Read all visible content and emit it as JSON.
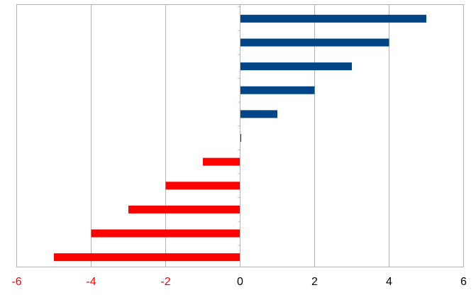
{
  "chart_data": {
    "type": "bar",
    "orientation": "horizontal",
    "values": [
      -5,
      -4,
      -3,
      -2,
      -1,
      0,
      1,
      2,
      3,
      4,
      5
    ],
    "xlim": [
      -6,
      6
    ],
    "x_ticks": [
      -6,
      -4,
      -2,
      0,
      2,
      4,
      6
    ],
    "x_tick_labels": [
      "-6",
      "-4",
      "-2",
      "0",
      "2",
      "4",
      "6"
    ],
    "title": "",
    "xlabel": "",
    "ylabel": "",
    "grid": "vertical",
    "legend": "none",
    "colors": {
      "positive": "#004586",
      "negative": "#ff0000",
      "negative_tick_label": "#ff0000",
      "positive_tick_label": "#000000",
      "gridline": "#b3b3b3",
      "axis": "#b3b3b3"
    }
  }
}
